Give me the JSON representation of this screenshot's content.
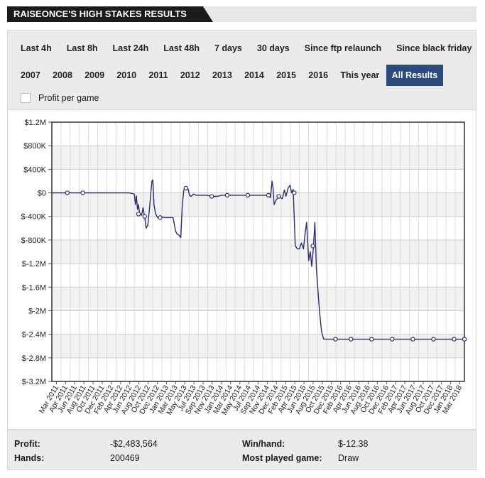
{
  "header": {
    "title": "RAISEONCE'S HIGH STAKES RESULTS"
  },
  "filters": {
    "row1": [
      "Last 4h",
      "Last 8h",
      "Last 24h",
      "Last 48h",
      "7 days",
      "30 days",
      "Since ftp relaunch",
      "Since black friday"
    ],
    "row2": [
      "2007",
      "2008",
      "2009",
      "2010",
      "2011",
      "2012",
      "2013",
      "2014",
      "2015",
      "2016",
      "This year",
      "All Results"
    ],
    "active": "All Results",
    "profit_per_game_label": "Profit per game",
    "profit_per_game_checked": false
  },
  "colors": {
    "line": "#2b2f6e",
    "active_filter": "#2c4a7e",
    "band": "#f2f2f2"
  },
  "chart_data": {
    "type": "line",
    "y_ticks": [
      "$1.2M",
      "$800K",
      "$400K",
      "$0",
      "$-400K",
      "$-800K",
      "$-1.2M",
      "$-1.6M",
      "$-2M",
      "$-2.4M",
      "$-2.8M",
      "$-3.2M"
    ],
    "ylim": [
      -3200000,
      1200000
    ],
    "x_ticks": [
      "Mar 2011",
      "Apr 2011",
      "Jun 2011",
      "Aug 2011",
      "Oct 2011",
      "Dec 2011",
      "Feb 2012",
      "Apr 2012",
      "Jun 2012",
      "Aug 2012",
      "Oct 2012",
      "Dec 2012",
      "Jan 2013",
      "Mar 2013",
      "May 2013",
      "Jul 2013",
      "Sep 2013",
      "Nov 2013",
      "Jan 2014",
      "Mar 2014",
      "May 2014",
      "Jul 2014",
      "Sep 2014",
      "Nov 2014",
      "Dec 2014",
      "Feb 2015",
      "Apr 2015",
      "Jun 2015",
      "Aug 2015",
      "Oct 2015",
      "Dec 2015",
      "Feb 2016",
      "Apr 2016",
      "Jun 2016",
      "Aug 2016",
      "Oct 2016",
      "Dec 2016",
      "Feb 2017",
      "Apr 2017",
      "Jun 2017",
      "Aug 2017",
      "Oct 2017",
      "Dec 2017",
      "Jan 2018",
      "Mar 2018"
    ],
    "series": [
      {
        "values": [
          [
            0,
            0
          ],
          [
            3,
            0
          ],
          [
            6,
            0
          ],
          [
            9,
            0
          ],
          [
            13,
            0
          ],
          [
            15,
            0
          ],
          [
            16.0,
            -20000
          ],
          [
            16.2,
            -200000
          ],
          [
            16.4,
            -50000
          ],
          [
            16.6,
            -280000
          ],
          [
            16.8,
            -200000
          ],
          [
            17.0,
            -350000
          ],
          [
            17.4,
            -380000
          ],
          [
            17.7,
            -250000
          ],
          [
            18.0,
            -420000
          ],
          [
            18.3,
            -600000
          ],
          [
            18.6,
            -550000
          ],
          [
            18.9,
            -300000
          ],
          [
            19.2,
            0
          ],
          [
            19.4,
            200000
          ],
          [
            19.6,
            220000
          ],
          [
            19.8,
            -200000
          ],
          [
            20.1,
            -350000
          ],
          [
            20.5,
            -420000
          ],
          [
            21.0,
            -410000
          ],
          [
            22.0,
            -420000
          ],
          [
            23.0,
            -420000
          ],
          [
            23.5,
            -420000
          ],
          [
            24.0,
            -650000
          ],
          [
            24.3,
            -700000
          ],
          [
            24.7,
            -720000
          ],
          [
            25.0,
            -760000
          ],
          [
            25.3,
            -200000
          ],
          [
            25.6,
            50000
          ],
          [
            26.0,
            80000
          ],
          [
            26.4,
            70000
          ],
          [
            26.7,
            -40000
          ],
          [
            27.0,
            -60000
          ],
          [
            27.5,
            -20000
          ],
          [
            28.0,
            -40000
          ],
          [
            29.0,
            -40000
          ],
          [
            30.0,
            -40000
          ],
          [
            31.0,
            -60000
          ],
          [
            32.0,
            -60000
          ],
          [
            33.0,
            -40000
          ],
          [
            34.0,
            -40000
          ],
          [
            36.0,
            -40000
          ],
          [
            38.0,
            -40000
          ],
          [
            40.0,
            -40000
          ],
          [
            41.5,
            -40000
          ],
          [
            42.0,
            -40000
          ],
          [
            42.4,
            -80000
          ],
          [
            42.7,
            200000
          ],
          [
            42.9,
            80000
          ],
          [
            43.1,
            -200000
          ],
          [
            43.5,
            -120000
          ],
          [
            44.0,
            -60000
          ],
          [
            44.3,
            -80000
          ],
          [
            44.7,
            -100000
          ],
          [
            45.1,
            50000
          ],
          [
            45.4,
            -60000
          ],
          [
            45.8,
            80000
          ],
          [
            46.2,
            130000
          ],
          [
            46.5,
            0
          ],
          [
            46.8,
            60000
          ],
          [
            47.2,
            -900000
          ],
          [
            47.6,
            -950000
          ],
          [
            48.0,
            -950000
          ],
          [
            48.4,
            -850000
          ],
          [
            48.8,
            -950000
          ],
          [
            49.1,
            -700000
          ],
          [
            49.4,
            -500000
          ],
          [
            49.8,
            -1150000
          ],
          [
            50.1,
            -1000000
          ],
          [
            50.4,
            -1250000
          ],
          [
            50.7,
            -950000
          ],
          [
            51.0,
            -500000
          ],
          [
            51.3,
            -1300000
          ],
          [
            51.6,
            -1650000
          ],
          [
            51.9,
            -2000000
          ],
          [
            52.3,
            -2350000
          ],
          [
            52.7,
            -2480000
          ],
          [
            53.5,
            -2483564
          ],
          [
            55,
            -2483564
          ],
          [
            58,
            -2483564
          ],
          [
            62,
            -2483564
          ],
          [
            66,
            -2483564
          ],
          [
            70,
            -2483564
          ],
          [
            74,
            -2483564
          ],
          [
            78,
            -2483564
          ],
          [
            80,
            -2483564
          ]
        ]
      }
    ],
    "markers": [
      [
        3,
        0
      ],
      [
        6,
        0
      ],
      [
        16.8,
        -360000
      ],
      [
        18.0,
        -400000
      ],
      [
        21.0,
        -420000
      ],
      [
        26.0,
        80000
      ],
      [
        31.0,
        -60000
      ],
      [
        34.0,
        -40000
      ],
      [
        38.0,
        -40000
      ],
      [
        42.0,
        -40000
      ],
      [
        44.0,
        -60000
      ],
      [
        47.0,
        0
      ],
      [
        50.6,
        -900000
      ],
      [
        55,
        -2483564
      ],
      [
        58,
        -2483564
      ],
      [
        62,
        -2483564
      ],
      [
        66,
        -2483564
      ],
      [
        70,
        -2483564
      ],
      [
        74,
        -2483564
      ],
      [
        78,
        -2483564
      ],
      [
        80,
        -2483564
      ]
    ],
    "xlim": [
      0,
      80
    ],
    "grid": true
  },
  "stats": {
    "profit_label": "Profit:",
    "profit_value": "-$2,483,564",
    "hands_label": "Hands:",
    "hands_value": "200469",
    "winhand_label": "Win/hand:",
    "winhand_value": "$-12.38",
    "most_played_label": "Most played game:",
    "most_played_value": "Draw"
  }
}
